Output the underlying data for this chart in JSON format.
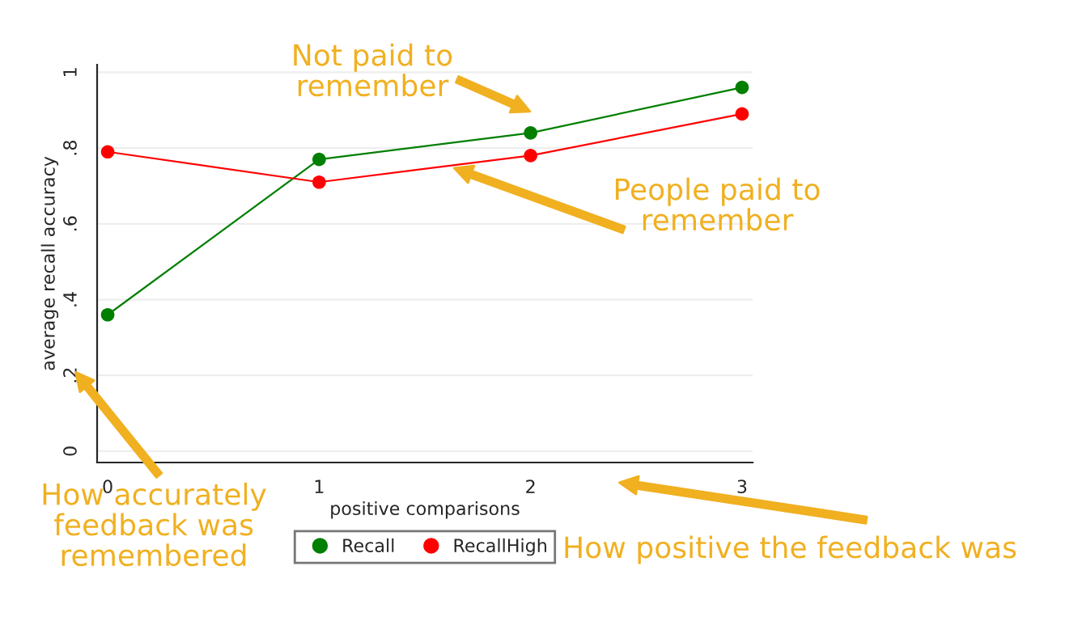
{
  "chart_data": {
    "type": "line",
    "xlabel": "positive comparisons",
    "ylabel": "average recall accuracy",
    "x": [
      0,
      1,
      2,
      3
    ],
    "series": [
      {
        "name": "Recall",
        "color": "#007f00",
        "values": [
          0.36,
          0.77,
          0.84,
          0.96
        ]
      },
      {
        "name": "RecallHigh",
        "color": "#ff0000",
        "values": [
          0.79,
          0.71,
          0.78,
          0.89
        ]
      }
    ],
    "xlim": [
      -0.05,
      3.05
    ],
    "xticks": [
      0,
      1,
      2,
      3
    ],
    "ylim": [
      -0.03,
      1.02
    ],
    "yticks": [
      {
        "value": 0,
        "label": "0"
      },
      {
        "value": 0.2,
        "label": ".2"
      },
      {
        "value": 0.4,
        "label": ".4"
      },
      {
        "value": 0.6,
        "label": ".6"
      },
      {
        "value": 0.8,
        "label": ".8"
      },
      {
        "value": 1,
        "label": "1"
      }
    ],
    "grid": "y",
    "legend": "bottom",
    "marker": "circle",
    "line_style": "solid",
    "annotations": [
      "Not paid to\nremember",
      "People paid to\nremember",
      "How accurately\nfeedback was\nremembered",
      "How positive the feedback was"
    ]
  }
}
